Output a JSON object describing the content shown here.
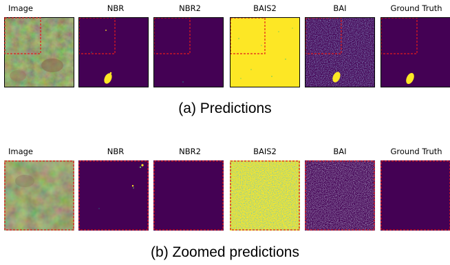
{
  "rows": [
    {
      "caption": "(a) Predictions",
      "columns": [
        "Image",
        "NBR",
        "NBR2",
        "BAIS2",
        "BAI",
        "Ground Truth"
      ],
      "zoomed": false
    },
    {
      "caption": "(b) Zoomed predictions",
      "columns": [
        "Image",
        "NBR",
        "NBR2",
        "BAIS2",
        "BAI",
        "Ground Truth"
      ],
      "zoomed": true
    }
  ],
  "colors": {
    "background_class": "#440154",
    "burned_class": "#fde725",
    "zoom_box": "#e31a1c"
  }
}
